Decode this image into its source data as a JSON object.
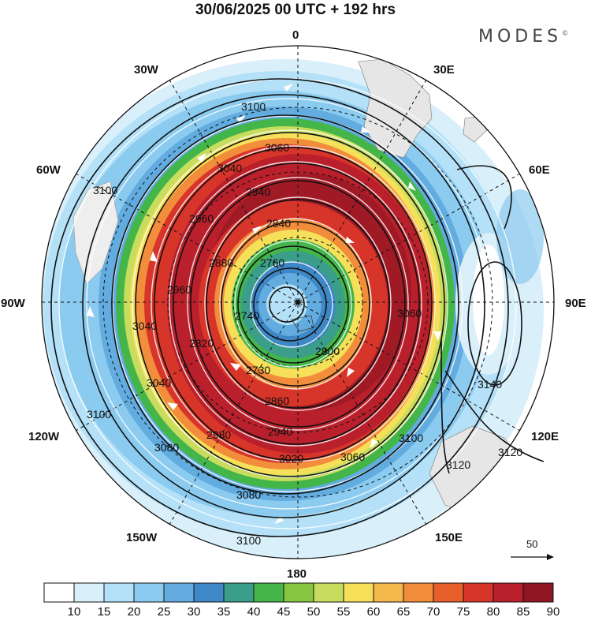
{
  "title": "30/06/2025  00 UTC  + 192 hrs",
  "brand": {
    "text": "MODES",
    "mark": "©"
  },
  "longitude_labels": {
    "n0": "0",
    "w30": "30W",
    "e30": "30E",
    "w60": "60W",
    "e60": "60E",
    "w90": "90W",
    "e90": "90E",
    "w120": "120W",
    "e120": "120E",
    "w150": "150W",
    "e150": "150E",
    "s180": "180"
  },
  "contours": [
    {
      "text": "3100"
    },
    {
      "text": "3060"
    },
    {
      "text": "3040"
    },
    {
      "text": "2940"
    },
    {
      "text": "2960"
    },
    {
      "text": "2840"
    },
    {
      "text": "2880"
    },
    {
      "text": "2760"
    },
    {
      "text": "2740"
    },
    {
      "text": "2820"
    },
    {
      "text": "2800"
    },
    {
      "text": "2730"
    },
    {
      "text": "2860"
    },
    {
      "text": "2940"
    },
    {
      "text": "2980"
    },
    {
      "text": "3020"
    },
    {
      "text": "3060"
    },
    {
      "text": "3080"
    },
    {
      "text": "3080"
    },
    {
      "text": "3100"
    },
    {
      "text": "3140"
    },
    {
      "text": "3120"
    },
    {
      "text": "3120"
    },
    {
      "text": "3100"
    },
    {
      "text": "3100"
    },
    {
      "text": "3040"
    },
    {
      "text": "3040"
    },
    {
      "text": "3060"
    },
    {
      "text": "3100"
    },
    {
      "text": "2960"
    }
  ],
  "reference_vector": "50",
  "colorbar": {
    "colors": [
      "#ffffff",
      "#d9effa",
      "#b4e1f7",
      "#8bcbf0",
      "#62acdf",
      "#3f88c8",
      "#3a9e8a",
      "#44b549",
      "#86c641",
      "#c8dd5e",
      "#f6e05a",
      "#f5b84d",
      "#f28d3b",
      "#e85f2c",
      "#d8352a",
      "#b9202b",
      "#8d1622"
    ],
    "ticks": [
      "10",
      "15",
      "20",
      "25",
      "30",
      "35",
      "40",
      "45",
      "50",
      "55",
      "60",
      "65",
      "70",
      "75",
      "80",
      "85",
      "90"
    ]
  }
}
